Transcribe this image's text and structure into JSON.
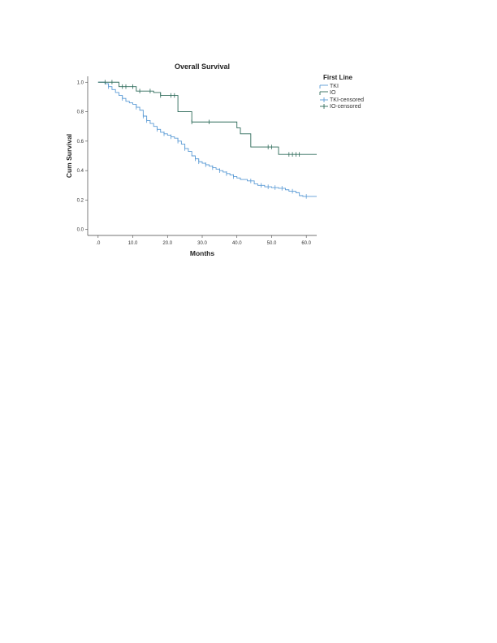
{
  "chart_data": {
    "type": "line",
    "title": "Overall Survival",
    "xlabel": "Months",
    "ylabel": "Cum Survival",
    "xlim": [
      -3,
      63
    ],
    "ylim": [
      -0.04,
      1.04
    ],
    "x_ticks": [
      ".0",
      "10.0",
      "20.0",
      "30.0",
      "40.0",
      "50.0",
      "60.0"
    ],
    "y_ticks": [
      "0.0",
      "0.2",
      "0.4",
      "0.6",
      "0.8",
      "1.0"
    ],
    "grid": false,
    "legend": {
      "title": "First Line",
      "position": "top-right",
      "entries": [
        "TKI",
        "IO",
        "TKI-censored",
        "IO-censored"
      ]
    },
    "series": [
      {
        "name": "TKI",
        "color": "#5b9bd5",
        "step_points": [
          [
            0,
            1.0
          ],
          [
            2,
            0.99
          ],
          [
            3,
            0.97
          ],
          [
            4,
            0.95
          ],
          [
            5,
            0.93
          ],
          [
            6,
            0.91
          ],
          [
            7,
            0.89
          ],
          [
            8,
            0.87
          ],
          [
            9,
            0.86
          ],
          [
            10,
            0.85
          ],
          [
            11,
            0.83
          ],
          [
            12,
            0.81
          ],
          [
            13,
            0.77
          ],
          [
            14,
            0.74
          ],
          [
            15,
            0.72
          ],
          [
            16,
            0.7
          ],
          [
            17,
            0.68
          ],
          [
            18,
            0.66
          ],
          [
            19,
            0.65
          ],
          [
            20,
            0.64
          ],
          [
            21,
            0.63
          ],
          [
            22,
            0.62
          ],
          [
            23,
            0.6
          ],
          [
            24,
            0.58
          ],
          [
            25,
            0.55
          ],
          [
            26,
            0.53
          ],
          [
            27,
            0.5
          ],
          [
            28,
            0.48
          ],
          [
            29,
            0.46
          ],
          [
            30,
            0.45
          ],
          [
            31,
            0.44
          ],
          [
            32,
            0.43
          ],
          [
            33,
            0.42
          ],
          [
            34,
            0.41
          ],
          [
            35,
            0.4
          ],
          [
            36,
            0.39
          ],
          [
            37,
            0.38
          ],
          [
            38,
            0.37
          ],
          [
            39,
            0.36
          ],
          [
            40,
            0.35
          ],
          [
            41,
            0.34
          ],
          [
            43,
            0.33
          ],
          [
            45,
            0.31
          ],
          [
            46,
            0.3
          ],
          [
            48,
            0.29
          ],
          [
            50,
            0.285
          ],
          [
            52,
            0.28
          ],
          [
            54,
            0.27
          ],
          [
            55,
            0.26
          ],
          [
            57,
            0.25
          ],
          [
            58,
            0.23
          ],
          [
            59,
            0.225
          ]
        ],
        "end_x": 63,
        "censored": [
          [
            3,
            0.97
          ],
          [
            7,
            0.89
          ],
          [
            11,
            0.83
          ],
          [
            13,
            0.77
          ],
          [
            14,
            0.74
          ],
          [
            17,
            0.68
          ],
          [
            19,
            0.65
          ],
          [
            21,
            0.63
          ],
          [
            23,
            0.6
          ],
          [
            25,
            0.55
          ],
          [
            28,
            0.48
          ],
          [
            29,
            0.46
          ],
          [
            31,
            0.44
          ],
          [
            33,
            0.42
          ],
          [
            35,
            0.4
          ],
          [
            37,
            0.38
          ],
          [
            39,
            0.36
          ],
          [
            44,
            0.33
          ],
          [
            47,
            0.3
          ],
          [
            49,
            0.29
          ],
          [
            51,
            0.285
          ],
          [
            53,
            0.28
          ],
          [
            56,
            0.26
          ],
          [
            60,
            0.225
          ]
        ]
      },
      {
        "name": "IO",
        "color": "#2e6b5a",
        "step_points": [
          [
            0,
            1.0
          ],
          [
            6,
            0.97
          ],
          [
            11,
            0.94
          ],
          [
            16,
            0.93
          ],
          [
            18,
            0.91
          ],
          [
            23,
            0.8
          ],
          [
            27,
            0.73
          ],
          [
            40,
            0.69
          ],
          [
            41,
            0.65
          ],
          [
            44,
            0.56
          ],
          [
            52,
            0.51
          ]
        ],
        "end_x": 63,
        "censored": [
          [
            2,
            1.0
          ],
          [
            4,
            1.0
          ],
          [
            7,
            0.97
          ],
          [
            8,
            0.97
          ],
          [
            10,
            0.97
          ],
          [
            12,
            0.94
          ],
          [
            15,
            0.94
          ],
          [
            18,
            0.91
          ],
          [
            21,
            0.91
          ],
          [
            22,
            0.91
          ],
          [
            27,
            0.73
          ],
          [
            32,
            0.73
          ],
          [
            49,
            0.56
          ],
          [
            50,
            0.56
          ],
          [
            55,
            0.51
          ],
          [
            56,
            0.51
          ],
          [
            57,
            0.51
          ],
          [
            58,
            0.51
          ]
        ]
      }
    ]
  }
}
